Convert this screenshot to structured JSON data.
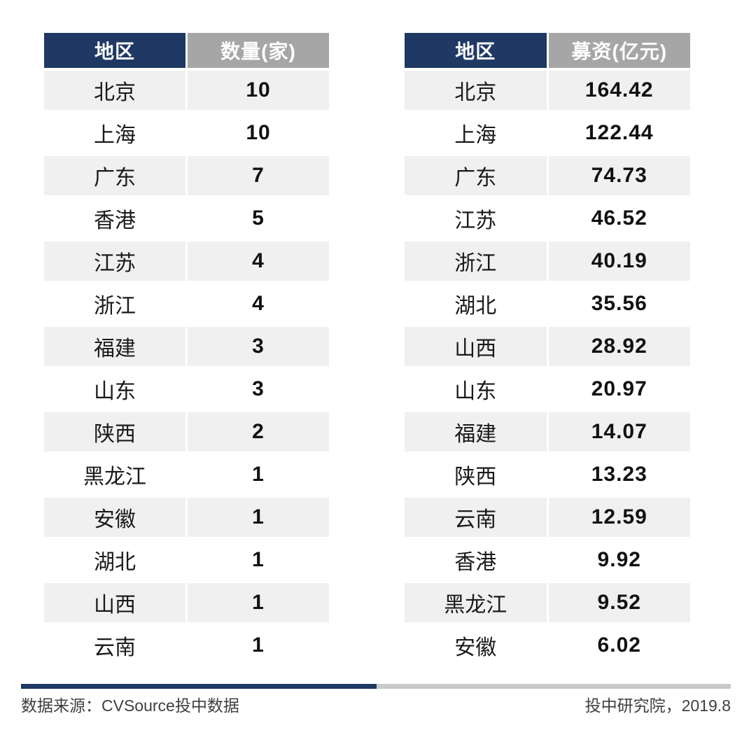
{
  "colors": {
    "header_navy": "#1f3864",
    "header_gray": "#a6a6a6",
    "row_alt_gray": "#f0f0f0",
    "bar_gray": "#c9c9c9",
    "body_text": "#1a1a1a",
    "footer_text": "#3f3f3f"
  },
  "tables": [
    {
      "id": "count",
      "headers": [
        "地区",
        "数量(家)"
      ],
      "rows": [
        [
          "北京",
          "10"
        ],
        [
          "上海",
          "10"
        ],
        [
          "广东",
          "7"
        ],
        [
          "香港",
          "5"
        ],
        [
          "江苏",
          "4"
        ],
        [
          "浙江",
          "4"
        ],
        [
          "福建",
          "3"
        ],
        [
          "山东",
          "3"
        ],
        [
          "陕西",
          "2"
        ],
        [
          "黑龙江",
          "1"
        ],
        [
          "安徽",
          "1"
        ],
        [
          "湖北",
          "1"
        ],
        [
          "山西",
          "1"
        ],
        [
          "云南",
          "1"
        ]
      ]
    },
    {
      "id": "funding",
      "headers": [
        "地区",
        "募资(亿元)"
      ],
      "rows": [
        [
          "北京",
          "164.42"
        ],
        [
          "上海",
          "122.44"
        ],
        [
          "广东",
          "74.73"
        ],
        [
          "江苏",
          "46.52"
        ],
        [
          "浙江",
          "40.19"
        ],
        [
          "湖北",
          "35.56"
        ],
        [
          "山西",
          "28.92"
        ],
        [
          "山东",
          "20.97"
        ],
        [
          "福建",
          "14.07"
        ],
        [
          "陕西",
          "13.23"
        ],
        [
          "云南",
          "12.59"
        ],
        [
          "香港",
          "9.92"
        ],
        [
          "黑龙江",
          "9.52"
        ],
        [
          "安徽",
          "6.02"
        ]
      ]
    }
  ],
  "footer": {
    "source": "数据来源：CVSource投中数据",
    "publisher": "投中研究院，2019.8"
  },
  "chart_data": [
    {
      "type": "table",
      "title": "IPO数量(家) by 地区",
      "columns": [
        "地区",
        "数量(家)"
      ],
      "rows": [
        [
          "北京",
          10
        ],
        [
          "上海",
          10
        ],
        [
          "广东",
          7
        ],
        [
          "香港",
          5
        ],
        [
          "江苏",
          4
        ],
        [
          "浙江",
          4
        ],
        [
          "福建",
          3
        ],
        [
          "山东",
          3
        ],
        [
          "陕西",
          2
        ],
        [
          "黑龙江",
          1
        ],
        [
          "安徽",
          1
        ],
        [
          "湖北",
          1
        ],
        [
          "山西",
          1
        ],
        [
          "云南",
          1
        ]
      ]
    },
    {
      "type": "table",
      "title": "募资(亿元) by 地区",
      "columns": [
        "地区",
        "募资(亿元)"
      ],
      "rows": [
        [
          "北京",
          164.42
        ],
        [
          "上海",
          122.44
        ],
        [
          "广东",
          74.73
        ],
        [
          "江苏",
          46.52
        ],
        [
          "浙江",
          40.19
        ],
        [
          "湖北",
          35.56
        ],
        [
          "山西",
          28.92
        ],
        [
          "山东",
          20.97
        ],
        [
          "福建",
          14.07
        ],
        [
          "陕西",
          13.23
        ],
        [
          "云南",
          12.59
        ],
        [
          "香港",
          9.92
        ],
        [
          "黑龙江",
          9.52
        ],
        [
          "安徽",
          6.02
        ]
      ]
    }
  ]
}
